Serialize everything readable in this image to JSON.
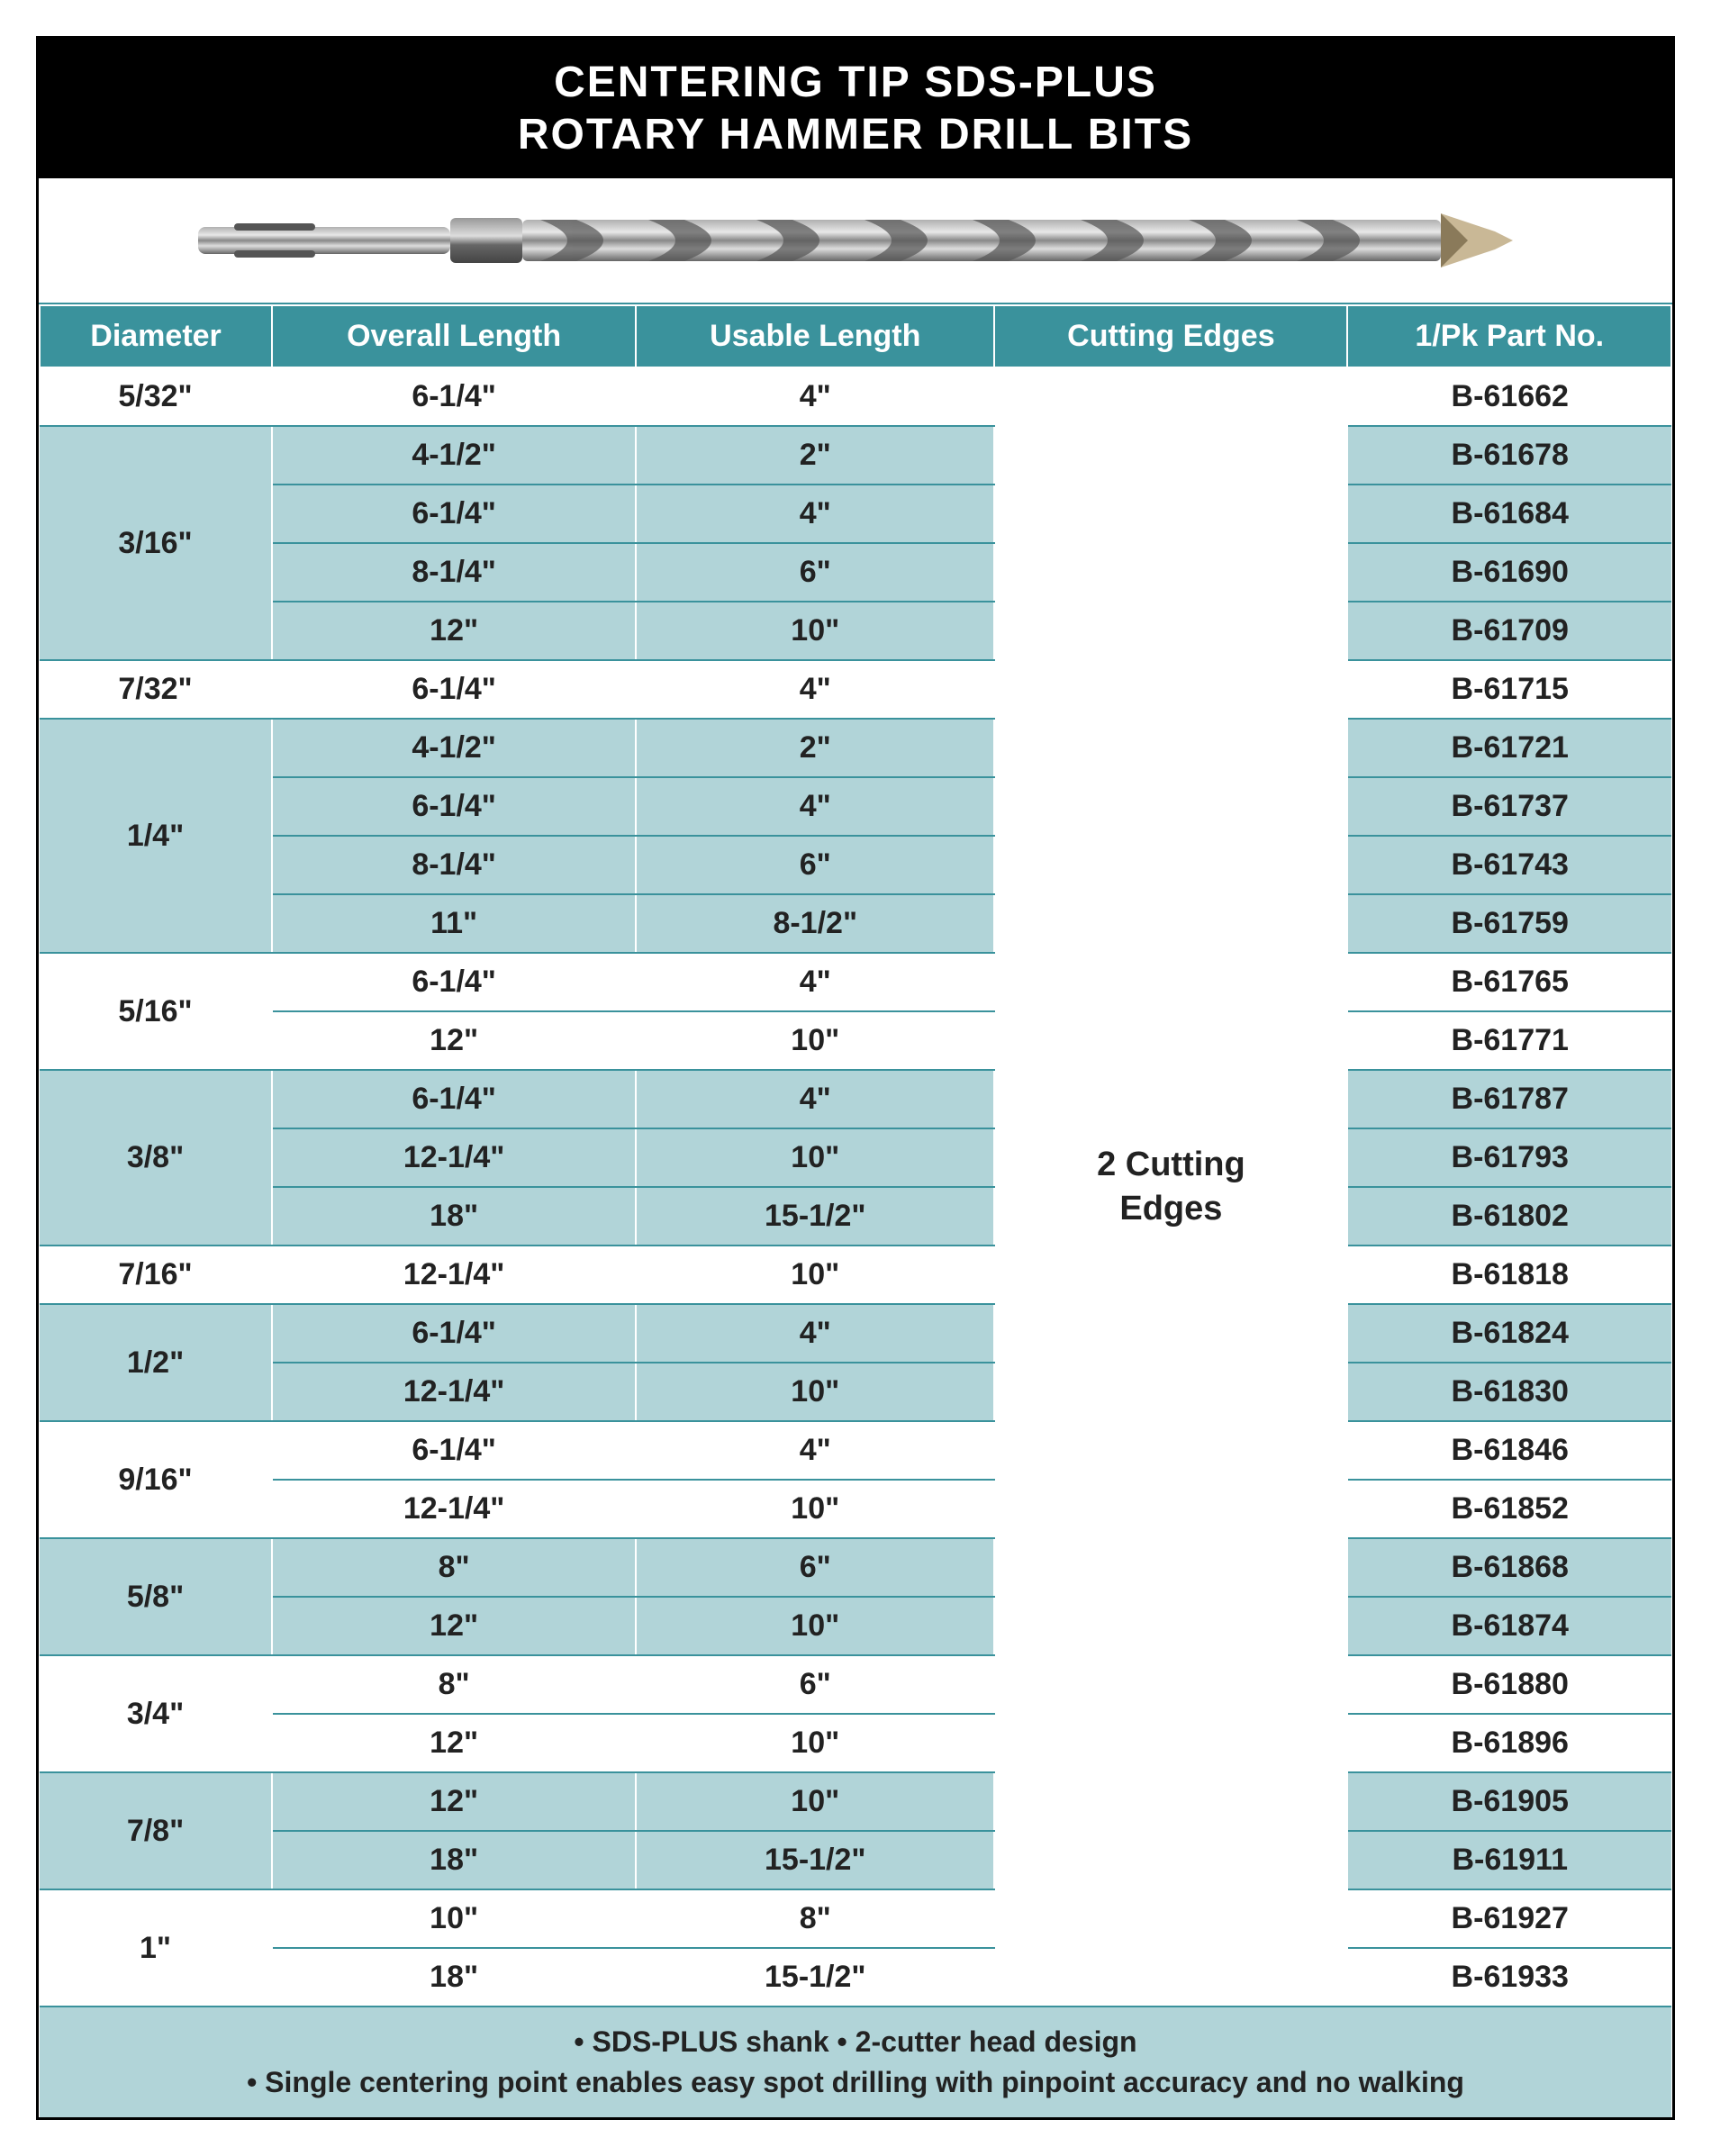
{
  "title_line1": "CENTERING TIP SDS-PLUS",
  "title_line2": "ROTARY HAMMER DRILL BITS",
  "columns": [
    "Diameter",
    "Overall Length",
    "Usable Length",
    "Cutting Edges",
    "1/Pk Part No."
  ],
  "cutting_edges_line1": "2 Cutting",
  "cutting_edges_line2": "Edges",
  "groups": [
    {
      "diameter": "5/32\"",
      "shade": "white",
      "rows": [
        {
          "overall": "6-1/4\"",
          "usable": "4\"",
          "part": "B-61662"
        }
      ]
    },
    {
      "diameter": "3/16\"",
      "shade": "blue",
      "rows": [
        {
          "overall": "4-1/2\"",
          "usable": "2\"",
          "part": "B-61678"
        },
        {
          "overall": "6-1/4\"",
          "usable": "4\"",
          "part": "B-61684"
        },
        {
          "overall": "8-1/4\"",
          "usable": "6\"",
          "part": "B-61690"
        },
        {
          "overall": "12\"",
          "usable": "10\"",
          "part": "B-61709"
        }
      ]
    },
    {
      "diameter": "7/32\"",
      "shade": "white",
      "rows": [
        {
          "overall": "6-1/4\"",
          "usable": "4\"",
          "part": "B-61715"
        }
      ]
    },
    {
      "diameter": "1/4\"",
      "shade": "blue",
      "rows": [
        {
          "overall": "4-1/2\"",
          "usable": "2\"",
          "part": "B-61721"
        },
        {
          "overall": "6-1/4\"",
          "usable": "4\"",
          "part": "B-61737"
        },
        {
          "overall": "8-1/4\"",
          "usable": "6\"",
          "part": "B-61743"
        },
        {
          "overall": "11\"",
          "usable": "8-1/2\"",
          "part": "B-61759"
        }
      ]
    },
    {
      "diameter": "5/16\"",
      "shade": "white",
      "rows": [
        {
          "overall": "6-1/4\"",
          "usable": "4\"",
          "part": "B-61765"
        },
        {
          "overall": "12\"",
          "usable": "10\"",
          "part": "B-61771"
        }
      ]
    },
    {
      "diameter": "3/8\"",
      "shade": "blue",
      "rows": [
        {
          "overall": "6-1/4\"",
          "usable": "4\"",
          "part": "B-61787"
        },
        {
          "overall": "12-1/4\"",
          "usable": "10\"",
          "part": "B-61793"
        },
        {
          "overall": "18\"",
          "usable": "15-1/2\"",
          "part": "B-61802"
        }
      ]
    },
    {
      "diameter": "7/16\"",
      "shade": "white",
      "rows": [
        {
          "overall": "12-1/4\"",
          "usable": "10\"",
          "part": "B-61818"
        }
      ]
    },
    {
      "diameter": "1/2\"",
      "shade": "blue",
      "rows": [
        {
          "overall": "6-1/4\"",
          "usable": "4\"",
          "part": "B-61824"
        },
        {
          "overall": "12-1/4\"",
          "usable": "10\"",
          "part": "B-61830"
        }
      ]
    },
    {
      "diameter": "9/16\"",
      "shade": "white",
      "rows": [
        {
          "overall": "6-1/4\"",
          "usable": "4\"",
          "part": "B-61846"
        },
        {
          "overall": "12-1/4\"",
          "usable": "10\"",
          "part": "B-61852"
        }
      ]
    },
    {
      "diameter": "5/8\"",
      "shade": "blue",
      "rows": [
        {
          "overall": "8\"",
          "usable": "6\"",
          "part": "B-61868"
        },
        {
          "overall": "12\"",
          "usable": "10\"",
          "part": "B-61874"
        }
      ]
    },
    {
      "diameter": "3/4\"",
      "shade": "white",
      "rows": [
        {
          "overall": "8\"",
          "usable": "6\"",
          "part": "B-61880"
        },
        {
          "overall": "12\"",
          "usable": "10\"",
          "part": "B-61896"
        }
      ]
    },
    {
      "diameter": "7/8\"",
      "shade": "blue",
      "rows": [
        {
          "overall": "12\"",
          "usable": "10\"",
          "part": "B-61905"
        },
        {
          "overall": "18\"",
          "usable": "15-1/2\"",
          "part": "B-61911"
        }
      ]
    },
    {
      "diameter": "1\"",
      "shade": "white",
      "rows": [
        {
          "overall": "10\"",
          "usable": "8\"",
          "part": "B-61927"
        },
        {
          "overall": "18\"",
          "usable": "15-1/2\"",
          "part": "B-61933"
        }
      ]
    }
  ],
  "footer_line1": "• SDS-PLUS shank • 2-cutter head design",
  "footer_line2": "• Single centering point enables easy spot drilling with pinpoint accuracy and no walking",
  "colors": {
    "header_bg": "#3a929c",
    "alt_row_bg": "#b1d4d8",
    "title_bg": "#000000",
    "border": "#3a929c"
  }
}
